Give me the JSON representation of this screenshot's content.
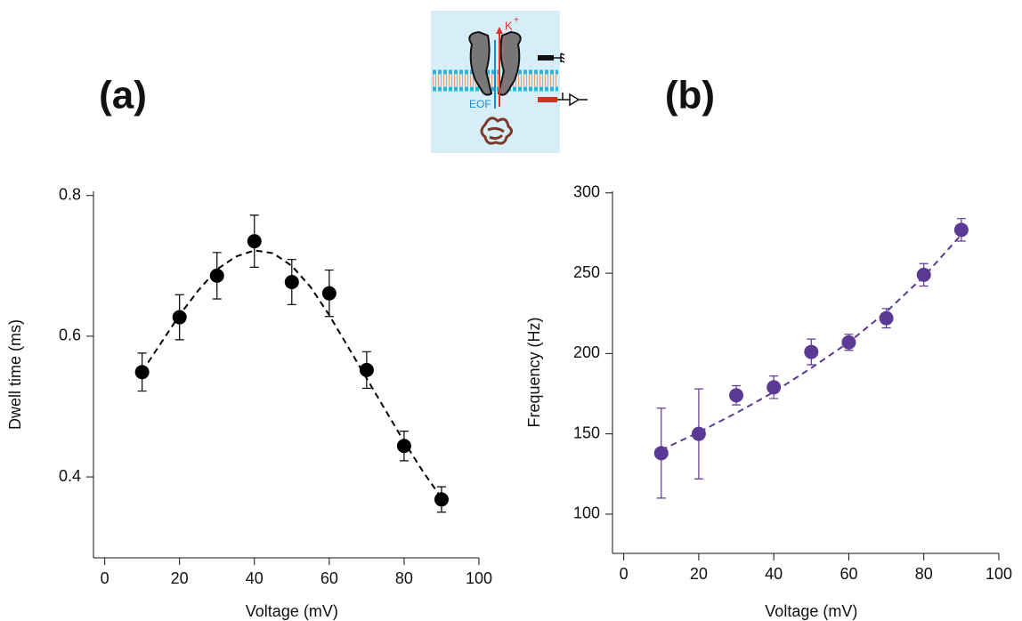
{
  "inset": {
    "k_label": "K",
    "k_sup": "+",
    "eof_label": "EOF"
  },
  "chart_data": [
    {
      "type": "scatter",
      "panel_label": "(a)",
      "xlabel": "Voltage (mV)",
      "ylabel": "Dwell time (ms)",
      "color": "#000000",
      "x": [
        10,
        20,
        30,
        40,
        50,
        60,
        70,
        80,
        90
      ],
      "values": [
        0.549,
        0.627,
        0.686,
        0.735,
        0.677,
        0.661,
        0.552,
        0.444,
        0.368
      ],
      "errors": [
        0.027,
        0.032,
        0.033,
        0.037,
        0.032,
        0.033,
        0.026,
        0.021,
        0.018
      ],
      "fit_x": [
        10,
        15,
        20,
        25,
        30,
        35,
        40,
        45,
        50,
        55,
        60,
        65,
        70,
        75,
        80,
        85,
        90
      ],
      "fit_values": [
        0.55,
        0.59,
        0.63,
        0.665,
        0.695,
        0.713,
        0.722,
        0.718,
        0.7,
        0.67,
        0.63,
        0.585,
        0.54,
        0.495,
        0.45,
        0.408,
        0.37
      ],
      "xlim": [
        -3,
        100
      ],
      "ylim": [
        0.285,
        0.806
      ],
      "xticks": [
        0,
        20,
        40,
        60,
        80,
        100
      ],
      "yticks": [
        0.4,
        0.6,
        0.8
      ]
    },
    {
      "type": "scatter",
      "panel_label": "(b)",
      "xlabel": "Voltage (mV)",
      "ylabel": "Frequency (Hz)",
      "color": "#5b3a96",
      "x": [
        10,
        20,
        30,
        40,
        50,
        60,
        70,
        80,
        90
      ],
      "values": [
        138,
        150,
        174,
        179,
        201,
        207,
        222,
        249,
        277
      ],
      "errors": [
        28,
        28,
        6,
        7,
        8,
        5,
        6,
        7,
        7
      ],
      "fit_x": [
        10,
        20,
        30,
        40,
        50,
        60,
        70,
        80,
        90
      ],
      "fit_values": [
        140,
        151,
        163,
        176,
        191,
        207,
        226,
        248,
        274
      ],
      "xlim": [
        -3,
        100
      ],
      "ylim": [
        75.6,
        301
      ],
      "xticks": [
        0,
        20,
        40,
        60,
        80,
        100
      ],
      "yticks": [
        100,
        150,
        200,
        250,
        300
      ]
    }
  ]
}
